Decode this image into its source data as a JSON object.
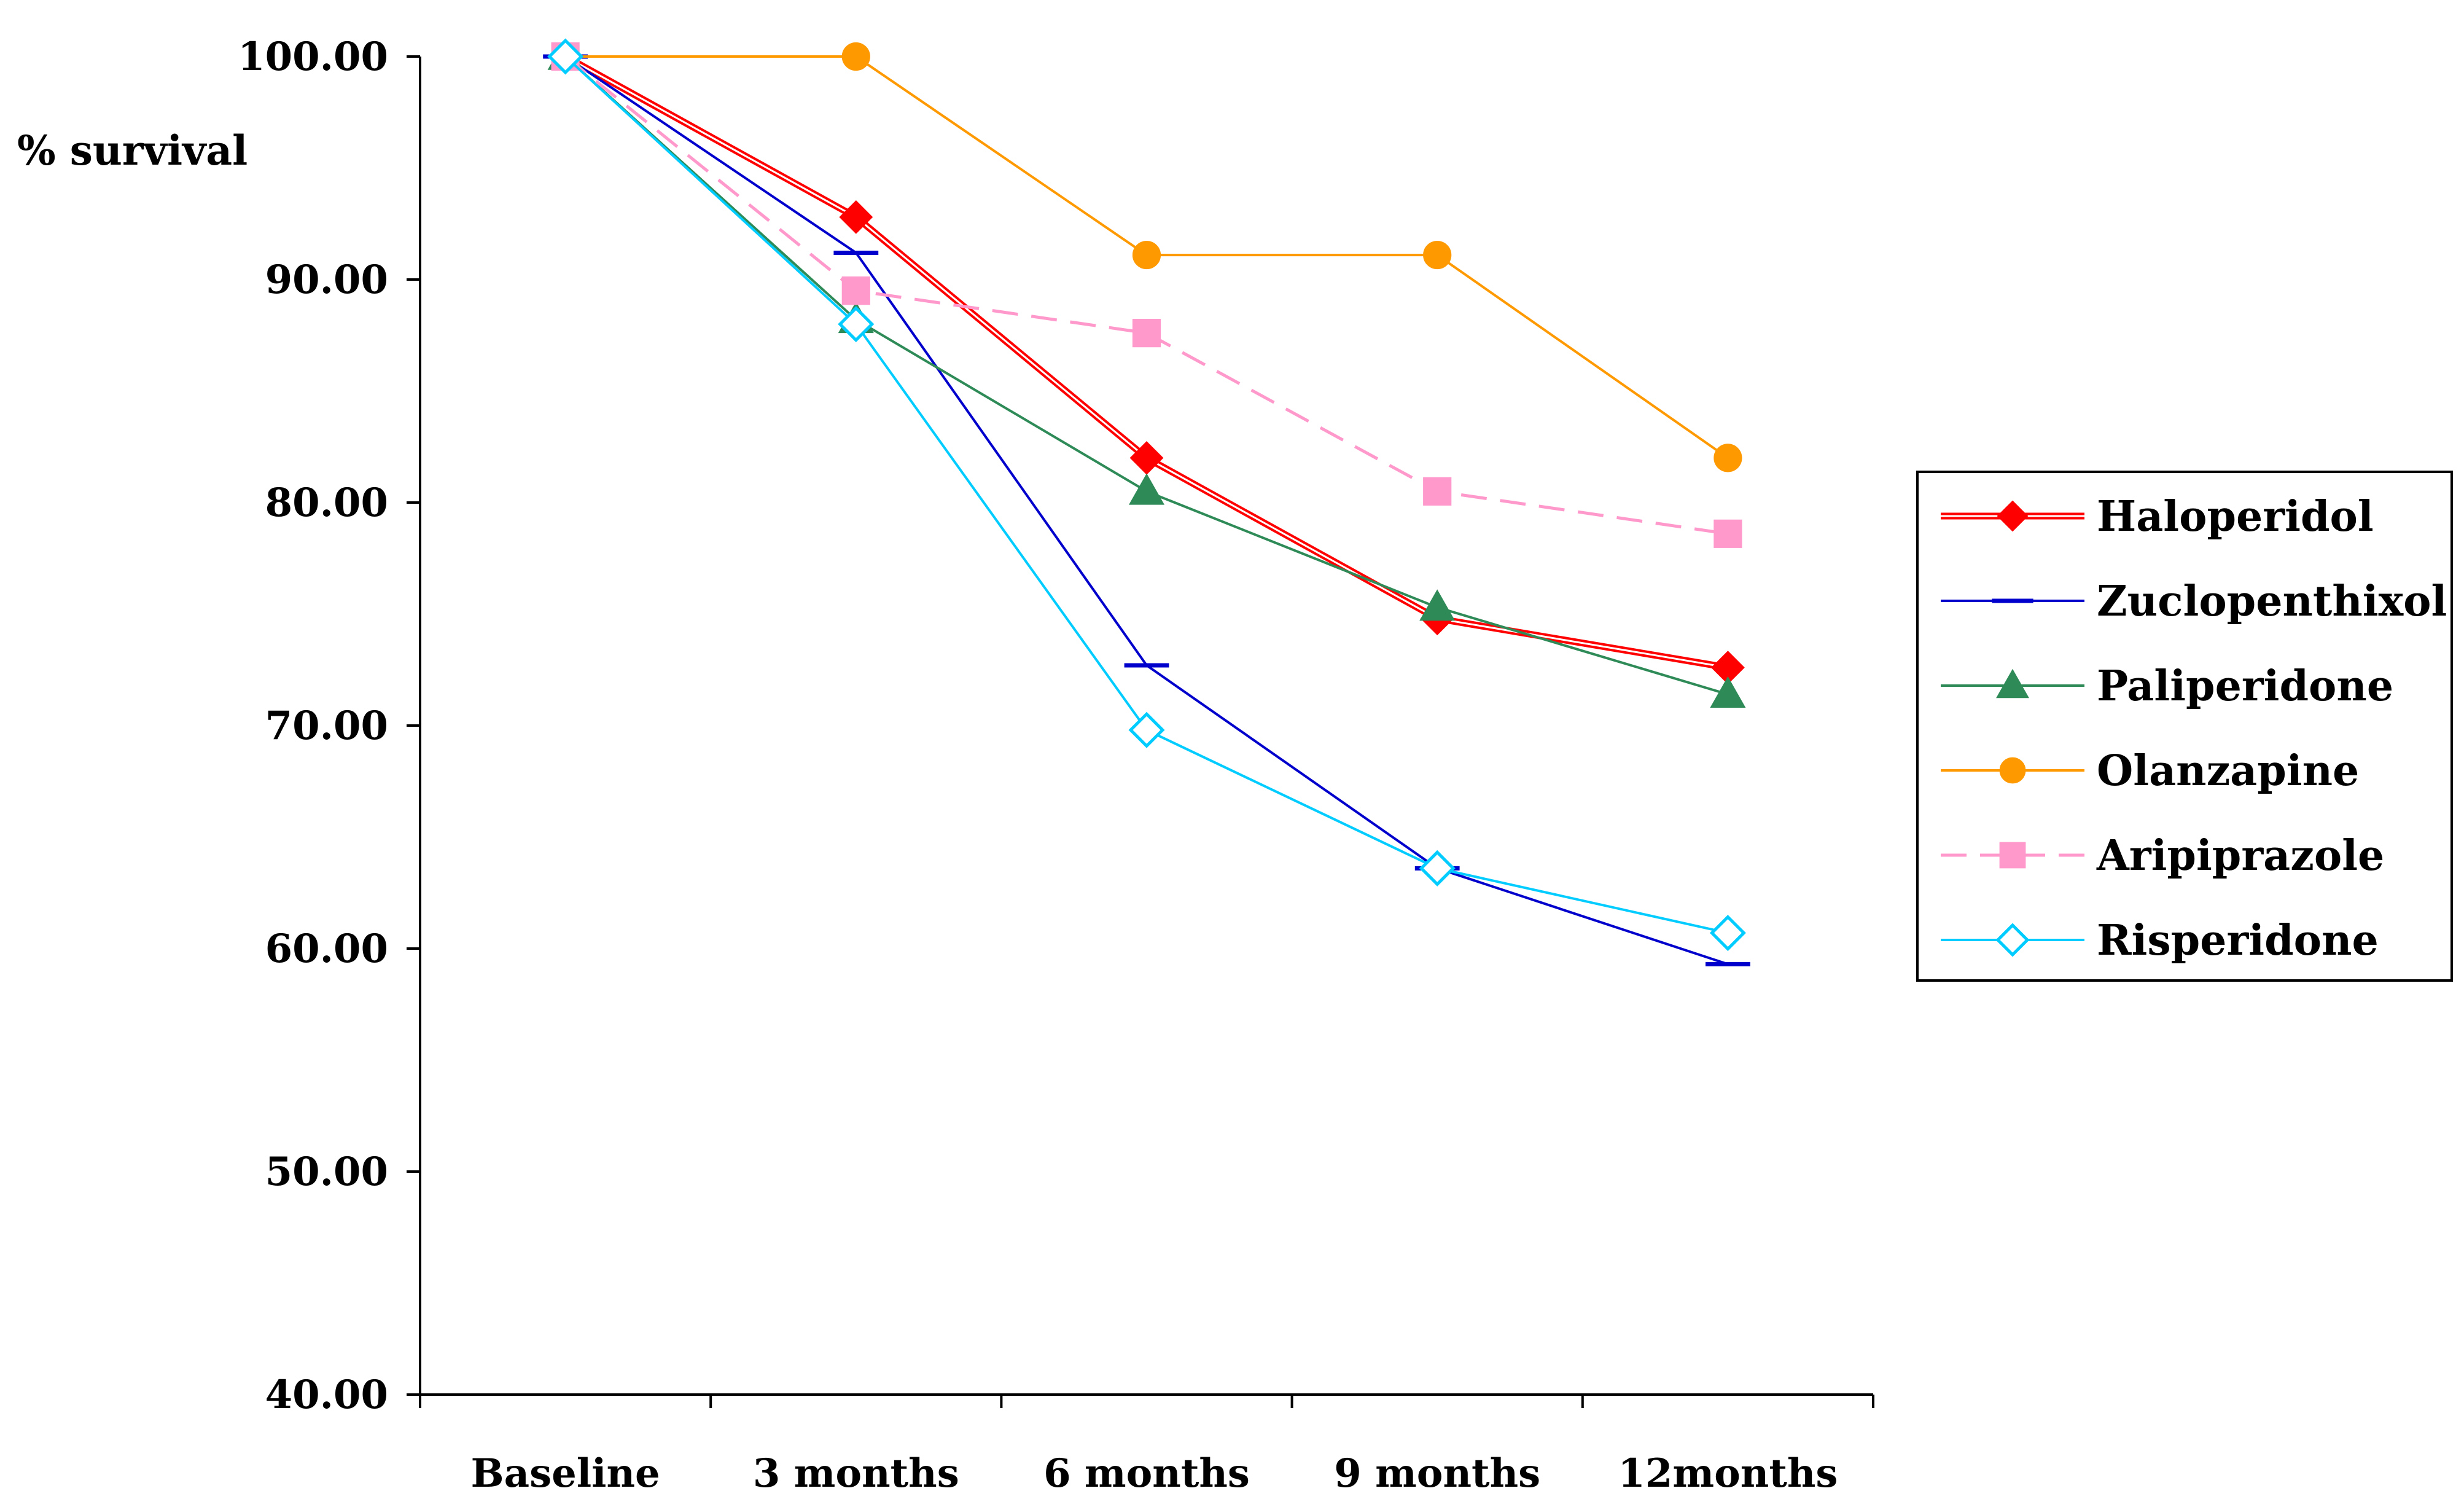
{
  "chart_data": {
    "type": "line",
    "title": "",
    "xlabel": "",
    "ylabel": "% survival",
    "categories": [
      "Baseline",
      "3 months",
      "6 months",
      "9 months",
      "12months"
    ],
    "ylim": [
      40,
      100
    ],
    "yticks": [
      "40.00",
      "50.00",
      "60.00",
      "70.00",
      "80.00",
      "90.00",
      "100.00"
    ],
    "grid": false,
    "legend_position": "right",
    "series": [
      {
        "name": "Haloperidol",
        "values": [
          100,
          92.8,
          82.0,
          74.8,
          72.6
        ],
        "color": "#ff0000",
        "marker": "diamond-filled",
        "dash": "double"
      },
      {
        "name": "Zuclopenthixol",
        "values": [
          100,
          91.2,
          72.7,
          63.6,
          59.3
        ],
        "color": "#0000cc",
        "marker": "dash",
        "dash": "solid"
      },
      {
        "name": "Paliperidone",
        "values": [
          100,
          88.2,
          80.5,
          75.3,
          71.4
        ],
        "color": "#2e8b57",
        "marker": "triangle-filled",
        "dash": "solid"
      },
      {
        "name": "Olanzapine",
        "values": [
          100,
          100,
          91.1,
          91.1,
          82.0
        ],
        "color": "#ff9900",
        "marker": "circle-filled",
        "dash": "solid"
      },
      {
        "name": "Aripiprazole",
        "values": [
          100,
          89.5,
          87.6,
          80.5,
          78.6
        ],
        "color": "#ff99cc",
        "marker": "square-filled",
        "dash": "dashed"
      },
      {
        "name": "Risperidone",
        "values": [
          100,
          88.0,
          69.8,
          63.6,
          60.7
        ],
        "color": "#00ccff",
        "marker": "diamond-open",
        "dash": "solid"
      }
    ]
  }
}
